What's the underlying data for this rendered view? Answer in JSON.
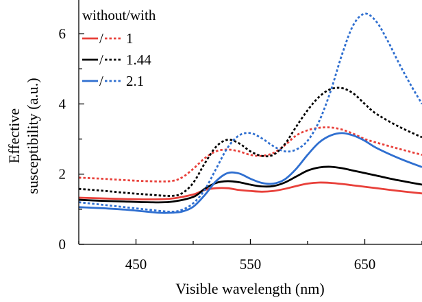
{
  "chart_data": {
    "type": "line",
    "xlabel": "Visible wavelength (nm)",
    "ylabel_lines": [
      "Effective",
      "susceptibility (a.u.)"
    ],
    "xlim": [
      400,
      700
    ],
    "ylim": [
      0,
      7
    ],
    "xticks": [
      450,
      550,
      650
    ],
    "xtick_labels": [
      "450",
      "550",
      "650"
    ],
    "yticks": [
      0,
      2,
      4,
      6
    ],
    "ytick_labels": [
      "0",
      "2",
      "4",
      "6"
    ],
    "grid": false,
    "legend": {
      "title": "without/with",
      "placement": "top-left",
      "separator": "/",
      "entries": [
        {
          "label": "1",
          "color": "#e8403a"
        },
        {
          "label": "1.44",
          "color": "#000000"
        },
        {
          "label": "2.1",
          "color": "#2f6fd0"
        }
      ]
    },
    "series": [
      {
        "group": "1",
        "style": "solid",
        "color": "#e8403a",
        "x": [
          400,
          420,
          440,
          460,
          480,
          500,
          510,
          520,
          530,
          540,
          550,
          560,
          570,
          580,
          590,
          600,
          610,
          620,
          630,
          640,
          650,
          660,
          680,
          700
        ],
        "y": [
          1.33,
          1.31,
          1.29,
          1.28,
          1.3,
          1.42,
          1.55,
          1.6,
          1.6,
          1.55,
          1.52,
          1.5,
          1.52,
          1.58,
          1.66,
          1.73,
          1.76,
          1.75,
          1.72,
          1.68,
          1.64,
          1.6,
          1.52,
          1.45
        ]
      },
      {
        "group": "1",
        "style": "dashed",
        "color": "#e8403a",
        "x": [
          400,
          420,
          440,
          460,
          480,
          490,
          500,
          510,
          520,
          530,
          540,
          550,
          560,
          570,
          580,
          590,
          600,
          610,
          620,
          630,
          640,
          650,
          660,
          680,
          700
        ],
        "y": [
          1.9,
          1.87,
          1.83,
          1.8,
          1.8,
          1.9,
          2.15,
          2.45,
          2.65,
          2.7,
          2.65,
          2.55,
          2.52,
          2.6,
          2.82,
          3.1,
          3.25,
          3.32,
          3.33,
          3.27,
          3.15,
          3.0,
          2.9,
          2.72,
          2.55
        ]
      },
      {
        "group": "1.44",
        "style": "solid",
        "color": "#000000",
        "x": [
          400,
          420,
          440,
          460,
          480,
          500,
          510,
          520,
          530,
          540,
          550,
          560,
          570,
          580,
          590,
          600,
          610,
          620,
          630,
          640,
          650,
          660,
          680,
          700
        ],
        "y": [
          1.27,
          1.24,
          1.22,
          1.2,
          1.21,
          1.35,
          1.58,
          1.75,
          1.8,
          1.77,
          1.7,
          1.65,
          1.66,
          1.76,
          1.93,
          2.1,
          2.19,
          2.21,
          2.17,
          2.1,
          2.03,
          1.96,
          1.82,
          1.7
        ]
      },
      {
        "group": "1.44",
        "style": "dashed",
        "color": "#000000",
        "x": [
          400,
          420,
          440,
          460,
          480,
          490,
          500,
          510,
          520,
          530,
          540,
          550,
          560,
          570,
          580,
          590,
          600,
          610,
          620,
          630,
          640,
          650,
          660,
          680,
          700
        ],
        "y": [
          1.58,
          1.53,
          1.47,
          1.42,
          1.38,
          1.45,
          1.75,
          2.3,
          2.78,
          2.98,
          2.88,
          2.65,
          2.52,
          2.55,
          2.85,
          3.35,
          3.82,
          4.2,
          4.42,
          4.45,
          4.3,
          4.0,
          3.72,
          3.35,
          3.05
        ]
      },
      {
        "group": "2.1",
        "style": "solid",
        "color": "#2f6fd0",
        "x": [
          400,
          420,
          440,
          460,
          470,
          480,
          490,
          500,
          510,
          520,
          530,
          540,
          550,
          560,
          570,
          580,
          590,
          600,
          610,
          620,
          630,
          640,
          650,
          660,
          680,
          700
        ],
        "y": [
          1.06,
          1.03,
          0.99,
          0.93,
          0.9,
          0.9,
          0.93,
          1.07,
          1.4,
          1.8,
          2.03,
          2.02,
          1.87,
          1.75,
          1.73,
          1.85,
          2.15,
          2.55,
          2.9,
          3.1,
          3.17,
          3.1,
          2.95,
          2.75,
          2.45,
          2.2
        ]
      },
      {
        "group": "2.1",
        "style": "dashed",
        "color": "#2f6fd0",
        "x": [
          400,
          420,
          440,
          460,
          480,
          490,
          500,
          510,
          520,
          530,
          540,
          550,
          560,
          570,
          580,
          590,
          600,
          610,
          620,
          630,
          640,
          650,
          660,
          670,
          680,
          690,
          700
        ],
        "y": [
          1.2,
          1.13,
          1.06,
          0.99,
          0.93,
          0.98,
          1.17,
          1.55,
          2.15,
          2.75,
          3.1,
          3.17,
          3.02,
          2.8,
          2.65,
          2.7,
          2.95,
          3.5,
          4.35,
          5.4,
          6.25,
          6.57,
          6.35,
          5.8,
          5.15,
          4.55,
          4.0
        ]
      }
    ]
  }
}
